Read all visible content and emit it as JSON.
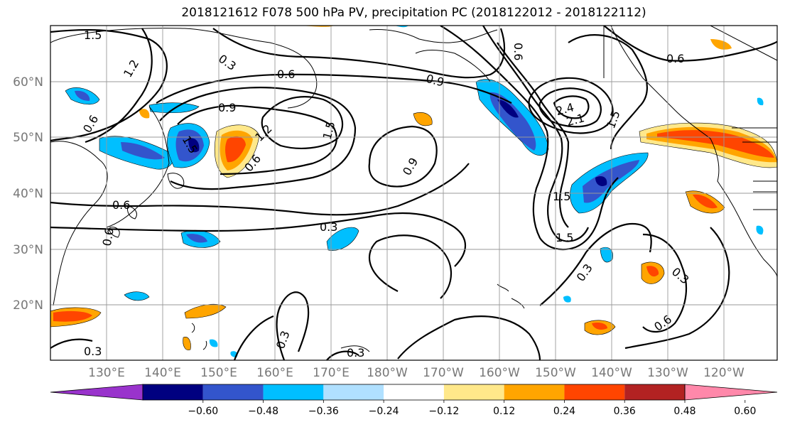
{
  "title": "2018121612 F078 500 hPa PV, precipitation PC (2018122012 - 2018122112)",
  "lat_labels": [
    "60°N",
    "50°N",
    "40°N",
    "30°N",
    "20°N"
  ],
  "lon_labels": [
    "130°E",
    "140°E",
    "150°E",
    "160°E",
    "170°E",
    "180°W",
    "170°W",
    "160°W",
    "150°W",
    "140°W",
    "130°W",
    "120°W"
  ],
  "contour_labels": [
    "1.5",
    "1.2",
    "0.3",
    "0.6",
    "0.9",
    "1.5",
    "1.2",
    "0.6",
    "0.9",
    "1.5",
    "2.4",
    "2.1",
    "1.5",
    "0.6",
    "0.9",
    "1.5",
    "1.5",
    "0.3",
    "0.3",
    "0.6",
    "0.6",
    "0.3",
    "0.3",
    "0.3",
    "0.6"
  ],
  "colorbar": {
    "ticks": [
      "−0.60",
      "−0.48",
      "−0.36",
      "−0.24",
      "−0.12",
      "0.12",
      "0.24",
      "0.36",
      "0.48",
      "0.60"
    ],
    "colors": [
      "#9933cc",
      "#000080",
      "#3355cc",
      "#00bfff",
      "#b0e0ff",
      "#ffffff",
      "#ffe88a",
      "#ffa500",
      "#ff4500",
      "#b22222",
      "#ff88aa"
    ]
  }
}
